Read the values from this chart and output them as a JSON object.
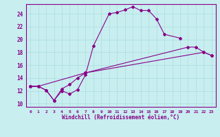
{
  "xlabel": "Windchill (Refroidissement éolien,°C)",
  "bg_color": "#c8eef0",
  "grid_color": "#aadddd",
  "line_color": "#880088",
  "xlim": [
    -0.5,
    23.5
  ],
  "ylim": [
    9.5,
    25.5
  ],
  "xticks": [
    0,
    1,
    2,
    3,
    4,
    5,
    6,
    7,
    8,
    9,
    10,
    11,
    12,
    13,
    14,
    15,
    16,
    17,
    18,
    19,
    20,
    21,
    22,
    23
  ],
  "yticks": [
    10,
    12,
    14,
    16,
    18,
    20,
    22,
    24
  ],
  "curve1": {
    "x": [
      0,
      1,
      2,
      3,
      4,
      5,
      6,
      7,
      8,
      10,
      11,
      12,
      13,
      14,
      15,
      16,
      17,
      19
    ],
    "y": [
      12.7,
      12.7,
      12.1,
      10.5,
      12.0,
      11.5,
      12.2,
      14.5,
      19.0,
      24.0,
      24.2,
      24.6,
      25.1,
      24.5,
      24.5,
      23.2,
      20.8,
      20.2
    ]
  },
  "curve2": {
    "x": [
      0,
      1,
      2,
      3,
      4,
      5,
      6,
      7,
      20,
      21,
      22,
      23
    ],
    "y": [
      12.7,
      12.7,
      12.1,
      10.5,
      12.3,
      13.0,
      14.0,
      14.8,
      18.8,
      18.8,
      18.0,
      17.5
    ]
  },
  "curve3": {
    "x": [
      0,
      1,
      7,
      22,
      23
    ],
    "y": [
      12.7,
      12.7,
      14.8,
      18.0,
      17.5
    ]
  }
}
